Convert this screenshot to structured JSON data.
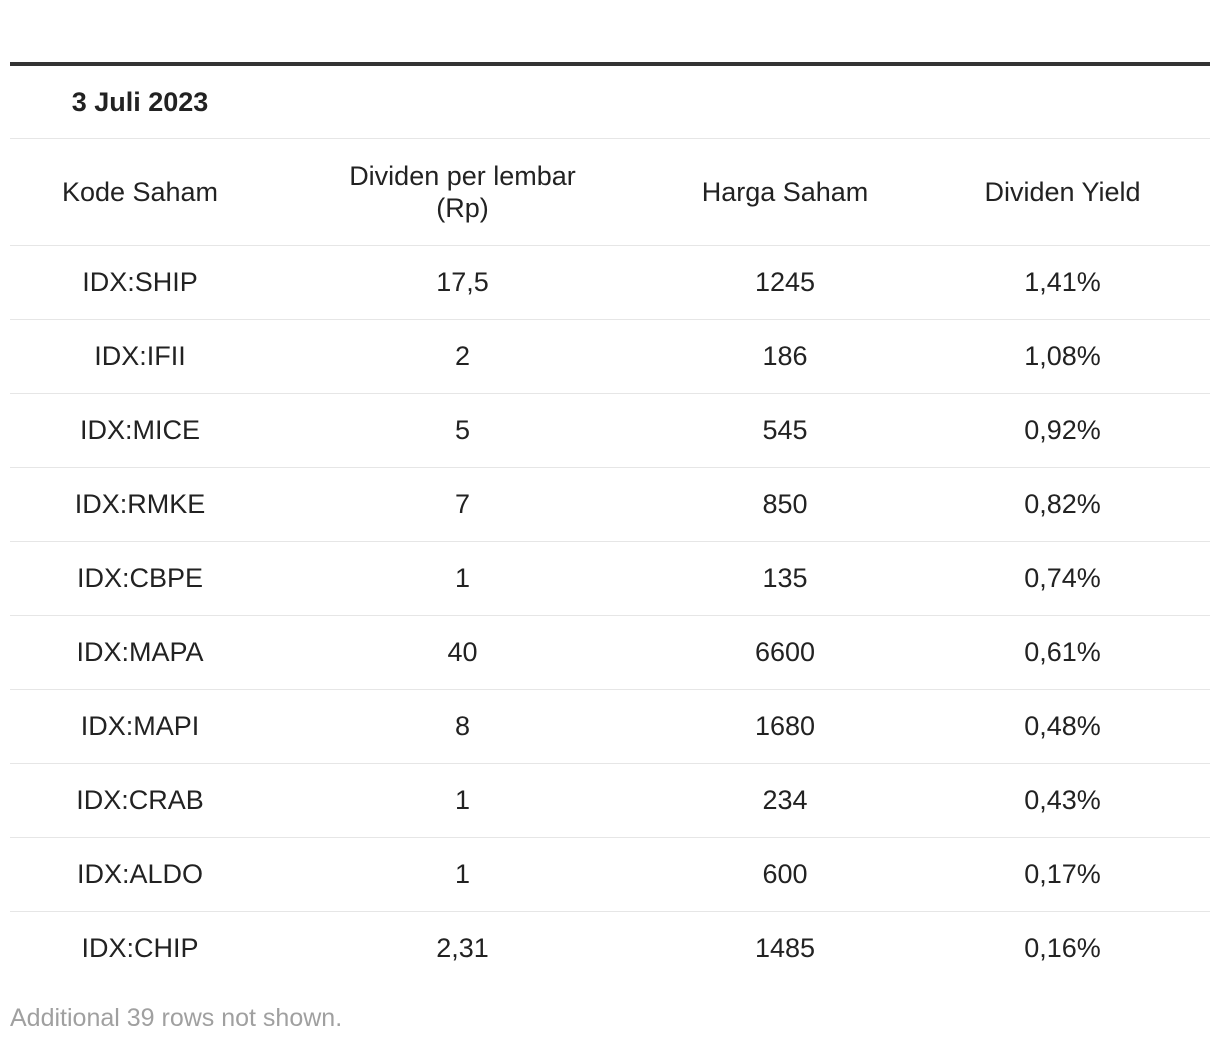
{
  "table": {
    "date": "3 Juli 2023",
    "headers": {
      "code": "Kode Saham",
      "dividend_line1": "Dividen per lembar",
      "dividend_line2": "(Rp)",
      "price": "Harga Saham",
      "yield": "Dividen Yield"
    },
    "rows": [
      {
        "code": "IDX:SHIP",
        "dividend": "17,5",
        "price": "1245",
        "yield": "1,41%"
      },
      {
        "code": "IDX:IFII",
        "dividend": "2",
        "price": "186",
        "yield": "1,08%"
      },
      {
        "code": "IDX:MICE",
        "dividend": "5",
        "price": "545",
        "yield": "0,92%"
      },
      {
        "code": "IDX:RMKE",
        "dividend": "7",
        "price": "850",
        "yield": "0,82%"
      },
      {
        "code": "IDX:CBPE",
        "dividend": "1",
        "price": "135",
        "yield": "0,74%"
      },
      {
        "code": "IDX:MAPA",
        "dividend": "40",
        "price": "6600",
        "yield": "0,61%"
      },
      {
        "code": "IDX:MAPI",
        "dividend": "8",
        "price": "1680",
        "yield": "0,48%"
      },
      {
        "code": "IDX:CRAB",
        "dividend": "1",
        "price": "234",
        "yield": "0,43%"
      },
      {
        "code": "IDX:ALDO",
        "dividend": "1",
        "price": "600",
        "yield": "0,17%"
      },
      {
        "code": "IDX:CHIP",
        "dividend": "2,31",
        "price": "1485",
        "yield": "0,16%"
      }
    ],
    "footnote": "Additional 39 rows not shown."
  }
}
